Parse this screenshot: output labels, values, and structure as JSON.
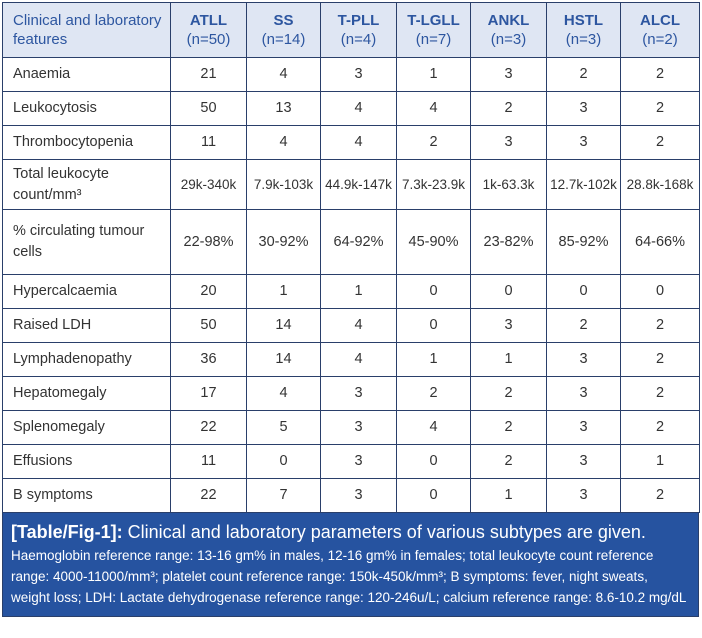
{
  "header": {
    "feature": "Clinical and laboratory features",
    "columns": [
      {
        "name": "ATLL",
        "n": "(n=50)"
      },
      {
        "name": "SS",
        "n": "(n=14)"
      },
      {
        "name": "T-PLL",
        "n": "(n=4)"
      },
      {
        "name": "T-LGLL",
        "n": "(n=7)"
      },
      {
        "name": "ANKL",
        "n": "(n=3)"
      },
      {
        "name": "HSTL",
        "n": "(n=3)"
      },
      {
        "name": "ALCL",
        "n": "(n=2)"
      }
    ]
  },
  "rows": [
    {
      "label": "Anaemia",
      "values": [
        "21",
        "4",
        "3",
        "1",
        "3",
        "2",
        "2"
      ]
    },
    {
      "label": "Leukocytosis",
      "values": [
        "50",
        "13",
        "4",
        "4",
        "2",
        "3",
        "2"
      ]
    },
    {
      "label": "Thrombocytopenia",
      "values": [
        "11",
        "4",
        "4",
        "2",
        "3",
        "3",
        "2"
      ]
    },
    {
      "label": "Total leukocyte count/mm³",
      "values": [
        "29k-340k",
        "7.9k-103k",
        "44.9k-147k",
        "7.3k-23.9k",
        "1k-63.3k",
        "12.7k-102k",
        "28.8k-168k"
      ]
    },
    {
      "label": "% circulating tumour cells",
      "values": [
        "22-98%",
        "30-92%",
        "64-92%",
        "45-90%",
        "23-82%",
        "85-92%",
        "64-66%"
      ]
    },
    {
      "label": "Hypercalcaemia",
      "values": [
        "20",
        "1",
        "1",
        "0",
        "0",
        "0",
        "0"
      ]
    },
    {
      "label": "Raised LDH",
      "values": [
        "50",
        "14",
        "4",
        "0",
        "3",
        "2",
        "2"
      ]
    },
    {
      "label": "Lymphadenopathy",
      "values": [
        "36",
        "14",
        "4",
        "1",
        "1",
        "3",
        "2"
      ]
    },
    {
      "label": "Hepatomegaly",
      "values": [
        "17",
        "4",
        "3",
        "2",
        "2",
        "3",
        "2"
      ]
    },
    {
      "label": "Splenomegaly",
      "values": [
        "22",
        "5",
        "3",
        "4",
        "2",
        "3",
        "2"
      ]
    },
    {
      "label": "Effusions",
      "values": [
        "11",
        "0",
        "3",
        "0",
        "2",
        "3",
        "1"
      ]
    },
    {
      "label": "B symptoms",
      "values": [
        "22",
        "7",
        "3",
        "0",
        "1",
        "3",
        "2"
      ]
    }
  ],
  "caption": {
    "tag": "[Table/Fig-1]:",
    "title": "Clinical and laboratory parameters of various subtypes are given.",
    "notes": "Haemoglobin reference range: 13-16 gm% in males, 12-16 gm% in females; total leukocyte count reference range: 4000-11000/mm³; platelet count reference range: 150k-450k/mm³; B symptoms: fever, night sweats, weight loss; LDH: Lactate dehydrogenase reference range: 120-246u/L; calcium reference range: 8.6-10.2 mg/dL"
  },
  "colors": {
    "header_bg": "#dfe6f3",
    "header_text": "#2d56a0",
    "caption_bg": "#2653a0"
  }
}
